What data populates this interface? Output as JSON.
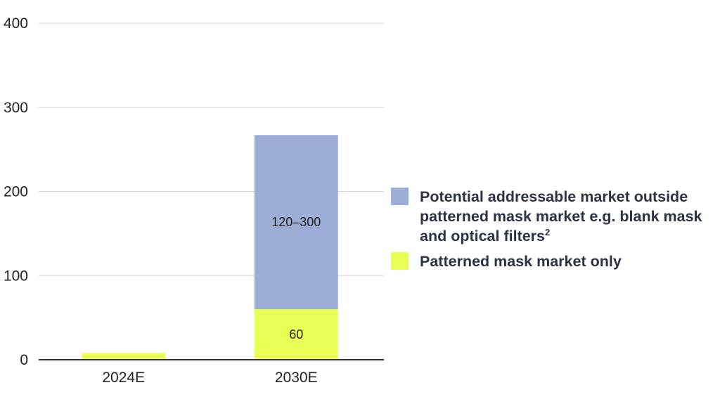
{
  "chart_data": {
    "type": "bar",
    "stacked": true,
    "categories": [
      "2024E",
      "2030E"
    ],
    "series": [
      {
        "name": "Patterned mask market only",
        "values": [
          8,
          60
        ],
        "labels": [
          "",
          "60"
        ],
        "color": "#eaff55"
      },
      {
        "name": "Potential addressable market outside patterned mask market e.g. blank mask and optical filters²",
        "values": [
          0,
          207
        ],
        "labels": [
          "",
          "120–300"
        ],
        "color": "#9daed6"
      }
    ],
    "title": "",
    "xlabel": "",
    "ylabel": "",
    "ylim": [
      0,
      400
    ],
    "yticks": [
      0,
      100,
      200,
      300,
      400
    ],
    "grid": true,
    "legend_position": "right"
  },
  "legend": {
    "items": [
      {
        "text": "Potential addressable market outside patterned mask market e.g. blank mask and optical filters",
        "sup": "2",
        "color": "#9daed6"
      },
      {
        "text": "Patterned mask market only",
        "sup": "",
        "color": "#eaff55"
      }
    ]
  }
}
